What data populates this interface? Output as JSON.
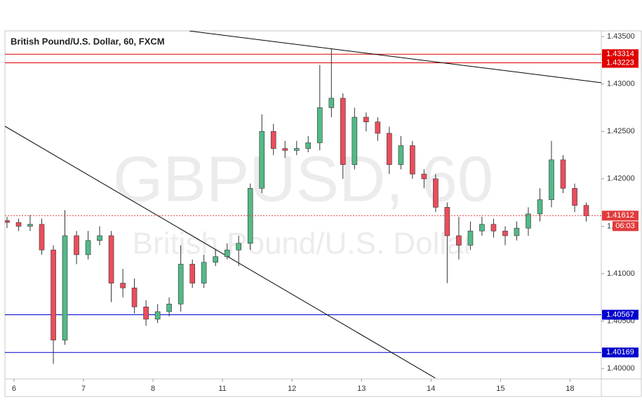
{
  "chart_data": {
    "type": "candlestick",
    "title": "British Pound/U.S. Dollar, 60, FXCM",
    "watermark": "GBPUSD, 60",
    "watermark_subtitle": "British Pound/U.S. Dollar",
    "x": [
      -0.1,
      0.067,
      0.233,
      0.4,
      0.567,
      0.733,
      0.9,
      1.067,
      1.233,
      1.4,
      1.567,
      1.733,
      1.9,
      2.067,
      2.233,
      2.4,
      2.567,
      2.733,
      2.9,
      3.067,
      3.233,
      3.4,
      3.567,
      3.733,
      3.9,
      4.067,
      4.233,
      4.4,
      4.567,
      4.733,
      4.9,
      5.067,
      5.233,
      5.4,
      5.567,
      5.733,
      5.9,
      6.067,
      6.233,
      6.4,
      6.567,
      6.733,
      6.9,
      7.067,
      7.233,
      7.4,
      7.567,
      7.733,
      7.9,
      8.067,
      8.233
    ],
    "open": [
      1.4156,
      1.4154,
      1.415,
      1.4152,
      1.4125,
      1.403,
      1.414,
      1.412,
      1.4135,
      1.414,
      1.409,
      1.4085,
      1.4065,
      1.4052,
      1.406,
      1.4068,
      1.411,
      1.409,
      1.4112,
      1.4118,
      1.4125,
      1.4132,
      1.419,
      1.425,
      1.4232,
      1.423,
      1.4232,
      1.4238,
      1.4275,
      1.4285,
      1.4215,
      1.4265,
      1.426,
      1.4248,
      1.4215,
      1.4235,
      1.4205,
      1.42,
      1.417,
      1.414,
      1.413,
      1.4145,
      1.4152,
      1.4145,
      1.414,
      1.4148,
      1.4163,
      1.4178,
      1.422,
      1.419,
      1.4172
    ],
    "high": [
      1.416,
      1.4158,
      1.4162,
      1.4158,
      1.413,
      1.4167,
      1.4145,
      1.4145,
      1.415,
      1.4145,
      1.4105,
      1.4095,
      1.4072,
      1.4068,
      1.4075,
      1.413,
      1.4115,
      1.412,
      1.4125,
      1.4132,
      1.414,
      1.4195,
      1.4268,
      1.4258,
      1.424,
      1.424,
      1.4245,
      1.432,
      1.4337,
      1.429,
      1.4275,
      1.427,
      1.4265,
      1.4255,
      1.4245,
      1.424,
      1.421,
      1.4205,
      1.4175,
      1.416,
      1.4155,
      1.416,
      1.4158,
      1.415,
      1.4155,
      1.417,
      1.419,
      1.424,
      1.4225,
      1.4195,
      1.4175
    ],
    "low": [
      1.4148,
      1.4145,
      1.4145,
      1.412,
      1.4005,
      1.4025,
      1.411,
      1.4115,
      1.413,
      1.407,
      1.4075,
      1.4058,
      1.4045,
      1.4048,
      1.4055,
      1.406,
      1.4085,
      1.4085,
      1.4108,
      1.4115,
      1.4108,
      1.4125,
      1.4185,
      1.4225,
      1.4222,
      1.4225,
      1.4228,
      1.423,
      1.4265,
      1.42,
      1.421,
      1.425,
      1.424,
      1.4205,
      1.421,
      1.42,
      1.419,
      1.4165,
      1.409,
      1.4115,
      1.4125,
      1.414,
      1.4138,
      1.413,
      1.4135,
      1.414,
      1.4155,
      1.417,
      1.4185,
      1.4165,
      1.4155
    ],
    "close": [
      1.4154,
      1.415,
      1.4152,
      1.4125,
      1.403,
      1.414,
      1.412,
      1.4135,
      1.414,
      1.409,
      1.4085,
      1.4065,
      1.4052,
      1.406,
      1.4068,
      1.411,
      1.409,
      1.4112,
      1.4118,
      1.4125,
      1.4132,
      1.419,
      1.425,
      1.4232,
      1.423,
      1.4232,
      1.4238,
      1.4275,
      1.4285,
      1.4215,
      1.4265,
      1.426,
      1.4248,
      1.4215,
      1.4235,
      1.4205,
      1.42,
      1.417,
      1.414,
      1.413,
      1.4145,
      1.4152,
      1.4145,
      1.414,
      1.4148,
      1.4163,
      1.4178,
      1.422,
      1.419,
      1.4172,
      1.4161
    ],
    "up_color": "#53b987",
    "down_color": "#eb4d5c",
    "xlim": [
      -0.13,
      8.45
    ],
    "xticks": [
      {
        "value": 0,
        "label": "6"
      },
      {
        "value": 1,
        "label": "7"
      },
      {
        "value": 2,
        "label": "8"
      },
      {
        "value": 3,
        "label": "11"
      },
      {
        "value": 4,
        "label": "12"
      },
      {
        "value": 5,
        "label": "13"
      },
      {
        "value": 6,
        "label": "14"
      },
      {
        "value": 7,
        "label": "15"
      },
      {
        "value": 8,
        "label": "18"
      }
    ],
    "ylim": [
      1.3989,
      1.4356
    ],
    "yticks": [
      {
        "value": 1.435,
        "label": "1.43500"
      },
      {
        "value": 1.43,
        "label": "1.43000"
      },
      {
        "value": 1.425,
        "label": "1.42500"
      },
      {
        "value": 1.42,
        "label": "1.42000"
      },
      {
        "value": 1.415,
        "label": "1.41500"
      },
      {
        "value": 1.41,
        "label": "1.41000"
      },
      {
        "value": 1.405,
        "label": "1.40500"
      },
      {
        "value": 1.4,
        "label": "1.40000"
      }
    ],
    "grid": false,
    "levels": [
      {
        "value": 1.43314,
        "color": "#e00000"
      },
      {
        "value": 1.43223,
        "color": "#e00000"
      },
      {
        "value": 1.40567,
        "color": "#0000cc"
      },
      {
        "value": 1.40169,
        "color": "#0000cc"
      }
    ],
    "current_price": 1.41612,
    "countdown": "06:03",
    "current_color": "#e23b3b",
    "trendlines": [
      {
        "x": [
          2.525,
          8.455
        ],
        "y": [
          1.43559,
          1.43013
        ],
        "color": "#000000"
      },
      {
        "x": [
          -0.131,
          6.06
        ],
        "y": [
          1.42555,
          1.399
        ],
        "color": "#000000"
      }
    ]
  }
}
